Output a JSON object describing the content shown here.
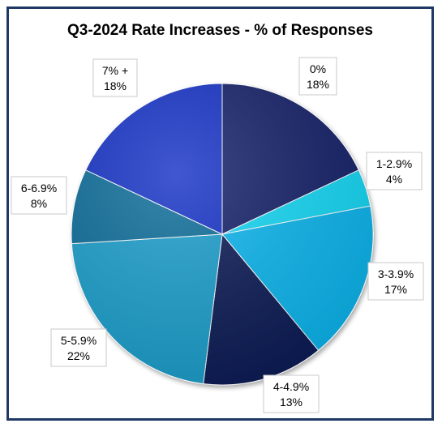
{
  "chart_data": {
    "type": "pie",
    "title": "Q3-2024 Rate Increases - % of Responses",
    "slices": [
      {
        "label": "0%",
        "value_label": "18%",
        "value": 18,
        "color": "#13206b"
      },
      {
        "label": "1-2.9%",
        "value_label": "4%",
        "value": 4,
        "color": "#15d8f5"
      },
      {
        "label": "3-3.9%",
        "value_label": "17%",
        "value": 17,
        "color": "#11b6ee"
      },
      {
        "label": "4-4.9%",
        "value_label": "13%",
        "value": 13,
        "color": "#0e1b56"
      },
      {
        "label": "5-5.9%",
        "value_label": "22%",
        "value": 22,
        "color": "#1a9fcc"
      },
      {
        "label": "6-6.9%",
        "value_label": "8%",
        "value": 8,
        "color": "#0b6d9a"
      },
      {
        "label": "7% +",
        "value_label": "18%",
        "value": 18,
        "color": "#1733c6"
      }
    ],
    "legend": "none",
    "data_labels": "outside"
  }
}
